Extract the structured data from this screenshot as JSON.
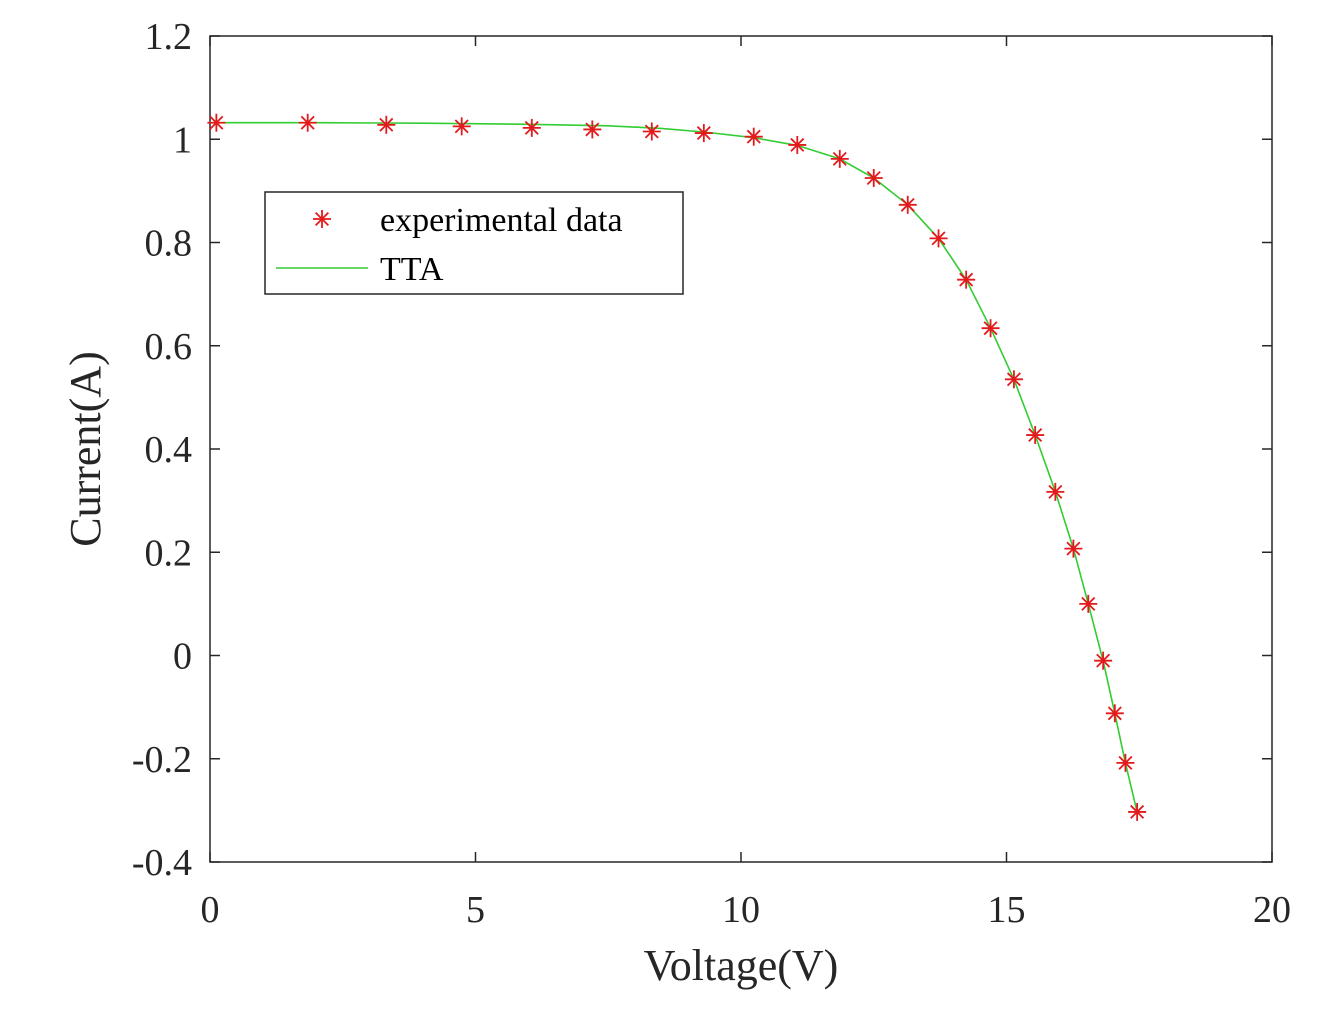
{
  "chart_data": {
    "type": "scatter",
    "title": "",
    "xlabel": "Voltage(V)",
    "ylabel": "Current(A)",
    "xlim": [
      0,
      20
    ],
    "ylim": [
      -0.4,
      1.2
    ],
    "xticks": [
      0,
      5,
      10,
      15,
      20
    ],
    "xtick_labels": [
      "0",
      "5",
      "10",
      "15",
      "20"
    ],
    "yticks": [
      -0.4,
      -0.2,
      0,
      0.2,
      0.4,
      0.6,
      0.8,
      1,
      1.2
    ],
    "ytick_labels": [
      "-0.4",
      "-0.2",
      "0",
      "0.2",
      "0.4",
      "0.6",
      "0.8",
      "1",
      "1.2"
    ],
    "grid": false,
    "legend_position": "upper-left",
    "series": [
      {
        "name": "experimental data",
        "kind": "markers",
        "marker": "asterisk",
        "color": "#e31a1c",
        "x": [
          0.12,
          1.84,
          3.32,
          4.74,
          6.06,
          7.2,
          8.32,
          9.3,
          10.24,
          11.06,
          11.86,
          12.5,
          13.14,
          13.72,
          14.24,
          14.7,
          15.14,
          15.54,
          15.92,
          16.26,
          16.54,
          16.82,
          17.04,
          17.24,
          17.46
        ],
        "y": [
          1.032,
          1.032,
          1.028,
          1.025,
          1.022,
          1.019,
          1.015,
          1.012,
          1.005,
          0.989,
          0.962,
          0.925,
          0.873,
          0.808,
          0.728,
          0.634,
          0.535,
          0.427,
          0.317,
          0.207,
          0.1,
          -0.01,
          -0.112,
          -0.208,
          -0.303
        ]
      },
      {
        "name": "TTA",
        "kind": "line",
        "color": "#33cc33",
        "x": [
          0.12,
          2,
          4,
          6,
          7.5,
          8.5,
          9.3,
          10.24,
          11.06,
          11.86,
          12.5,
          13.14,
          13.72,
          14.24,
          14.7,
          15.14,
          15.54,
          15.92,
          16.26,
          16.54,
          16.82,
          17.04,
          17.24,
          17.46
        ],
        "y": [
          1.032,
          1.032,
          1.031,
          1.029,
          1.026,
          1.021,
          1.014,
          1.003,
          0.988,
          0.962,
          0.925,
          0.873,
          0.808,
          0.728,
          0.634,
          0.535,
          0.427,
          0.317,
          0.207,
          0.1,
          -0.01,
          -0.112,
          -0.208,
          -0.303
        ]
      }
    ]
  }
}
